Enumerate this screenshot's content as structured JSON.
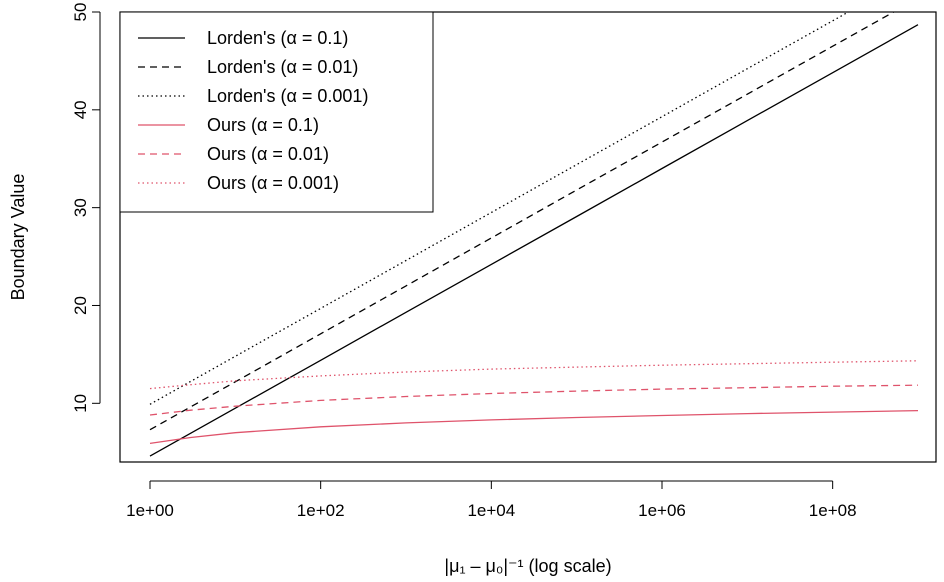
{
  "chart_data": {
    "type": "line",
    "title": "",
    "xlabel": "|μ₁ – μ₀|⁻¹ (log scale)",
    "ylabel": "Boundary Value",
    "x_scale": "log10",
    "xlim": [
      1,
      1000000000
    ],
    "ylim": [
      4,
      50
    ],
    "x_ticks": [
      1,
      100,
      10000,
      1000000,
      100000000
    ],
    "x_tick_labels": [
      "1e+00",
      "1e+02",
      "1e+04",
      "1e+06",
      "1e+08"
    ],
    "y_ticks": [
      10,
      20,
      30,
      40,
      50
    ],
    "y_tick_labels": [
      "10",
      "20",
      "30",
      "40",
      "50"
    ],
    "grid": false,
    "legend_position": "top-left",
    "series": [
      {
        "name": "Lorden's (α = 0.1)",
        "color": "#000000",
        "dash": "solid",
        "x": [
          1,
          10,
          100,
          1000,
          10000,
          100000,
          1000000,
          10000000,
          100000000,
          1000000000
        ],
        "y": [
          4.6,
          9.5,
          14.4,
          19.3,
          24.2,
          29.1,
          34.0,
          38.9,
          43.8,
          48.7
        ]
      },
      {
        "name": "Lorden's (α = 0.01)",
        "color": "#000000",
        "dash": "dashed",
        "x": [
          1,
          10,
          100,
          1000,
          10000,
          100000,
          1000000,
          10000000,
          100000000,
          1000000000
        ],
        "y": [
          7.3,
          12.2,
          17.1,
          22.0,
          26.9,
          31.8,
          36.7,
          41.6,
          46.5,
          51.4
        ]
      },
      {
        "name": "Lorden's (α = 0.001)",
        "color": "#000000",
        "dash": "dotted",
        "x": [
          1,
          10,
          100,
          1000,
          10000,
          100000,
          1000000,
          10000000,
          100000000,
          1000000000
        ],
        "y": [
          9.9,
          14.8,
          19.7,
          24.6,
          29.5,
          34.4,
          39.3,
          44.2,
          49.1,
          54.0
        ]
      },
      {
        "name": "Ours (α = 0.1)",
        "color": "#DF536B",
        "dash": "solid",
        "x": [
          1,
          3,
          10,
          100,
          1000,
          10000,
          100000,
          1000000,
          10000000,
          100000000,
          1000000000
        ],
        "y": [
          5.9,
          6.5,
          7.0,
          7.6,
          8.0,
          8.3,
          8.55,
          8.75,
          8.95,
          9.1,
          9.25
        ]
      },
      {
        "name": "Ours (α = 0.01)",
        "color": "#DF536B",
        "dash": "dashed",
        "x": [
          1,
          3,
          10,
          100,
          1000,
          10000,
          100000,
          1000000,
          10000000,
          100000000,
          1000000000
        ],
        "y": [
          8.8,
          9.3,
          9.7,
          10.3,
          10.7,
          11.0,
          11.25,
          11.45,
          11.6,
          11.75,
          11.85
        ]
      },
      {
        "name": "Ours (α = 0.001)",
        "color": "#DF536B",
        "dash": "dotted",
        "x": [
          1,
          3,
          10,
          100,
          1000,
          10000,
          100000,
          1000000,
          10000000,
          100000000,
          1000000000
        ],
        "y": [
          11.5,
          11.9,
          12.3,
          12.8,
          13.2,
          13.5,
          13.7,
          13.9,
          14.05,
          14.2,
          14.35
        ]
      }
    ]
  }
}
